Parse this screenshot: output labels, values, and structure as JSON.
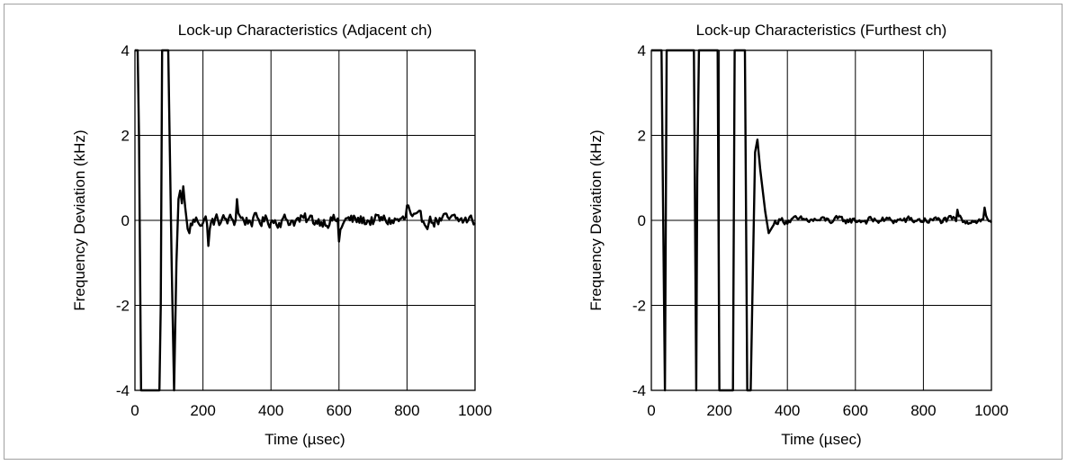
{
  "chart_data": [
    {
      "type": "line",
      "title": "Lock-up Characteristics (Adjacent ch)",
      "xlabel": "Time  (µsec)",
      "ylabel": "Frequency Deviation  (kHz)",
      "xlim": [
        0,
        1000
      ],
      "ylim": [
        -4,
        4
      ],
      "xticks": [
        0,
        200,
        400,
        600,
        800,
        1000
      ],
      "yticks": [
        4,
        2,
        0,
        -2,
        -4
      ],
      "xtick_labels": [
        "0",
        "200",
        "400",
        "600",
        "800",
        "1000"
      ],
      "ytick_labels": [
        "4",
        "2",
        "0",
        "-2",
        "-4"
      ],
      "grid": true,
      "series": [
        {
          "x": [
            0,
            8,
            12,
            18,
            25,
            72,
            76,
            80,
            84,
            98,
            108,
            115,
            122,
            128,
            133,
            138,
            142,
            148,
            155,
            160
          ],
          "y": [
            4,
            4,
            2,
            -4,
            -4,
            -4,
            -2,
            4,
            4,
            4,
            -1,
            -4,
            -1,
            0.5,
            0.7,
            0.4,
            0.8,
            0.3,
            -0.2,
            -0.3
          ],
          "noise_from": 160,
          "noise_to": 1000,
          "noise_amplitude": 0.25,
          "spikes": [
            [
              300,
              0.5
            ],
            [
              600,
              -0.5
            ],
            [
              802,
              0.35
            ],
            [
              215,
              -0.6
            ]
          ]
        }
      ]
    },
    {
      "type": "line",
      "title": "Lock-up Characteristics (Furthest ch)",
      "xlabel": "Time  (µsec)",
      "ylabel": "Frequency Deviation  (kHz)",
      "xlim": [
        0,
        1000
      ],
      "ylim": [
        -4,
        4
      ],
      "xticks": [
        0,
        200,
        400,
        600,
        800,
        1000
      ],
      "yticks": [
        4,
        2,
        0,
        -2,
        -4
      ],
      "xtick_labels": [
        "0",
        "200",
        "400",
        "600",
        "800",
        "1000"
      ],
      "ytick_labels": [
        "4",
        "2",
        "0",
        "-2",
        "-4"
      ],
      "grid": true,
      "series": [
        {
          "x": [
            0,
            30,
            40,
            45,
            125,
            132,
            135,
            140,
            195,
            200,
            205,
            240,
            245,
            250,
            275,
            282,
            292,
            305,
            312,
            320,
            335,
            345,
            360
          ],
          "y": [
            4,
            4,
            -4,
            4,
            4,
            -4,
            1,
            4,
            4,
            -4,
            -4,
            -4,
            4,
            4,
            4,
            -4,
            -4,
            1.6,
            1.9,
            1.2,
            0.2,
            -0.3,
            -0.1
          ],
          "noise_from": 360,
          "noise_to": 1000,
          "noise_amplitude": 0.14,
          "spikes": [
            [
              900,
              0.25
            ],
            [
              980,
              0.3
            ]
          ]
        }
      ]
    }
  ]
}
